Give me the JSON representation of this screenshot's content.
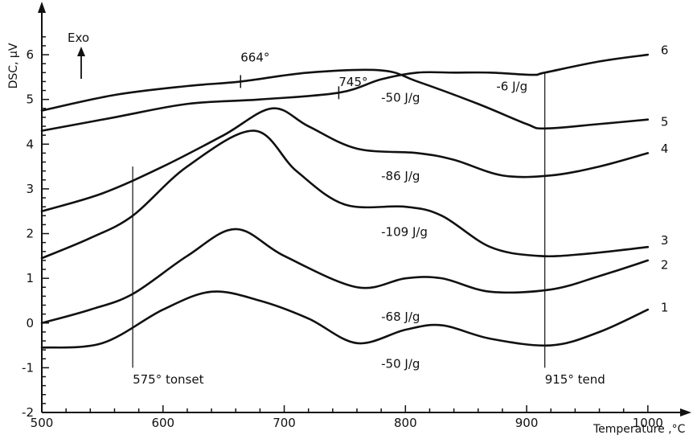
{
  "chart_data": {
    "type": "line",
    "xlabel": "Temperature ,°C",
    "ylabel": "DSC, μV",
    "xlim": [
      500,
      1020
    ],
    "ylim": [
      -2,
      6.9
    ],
    "xticks": [
      500,
      600,
      700,
      800,
      900,
      1000
    ],
    "yticks": [
      -2,
      -1,
      0,
      1,
      2,
      3,
      4,
      5,
      6
    ],
    "grid": false,
    "exo_label": "Exo",
    "series": [
      {
        "name": "1",
        "x": [
          500,
          550,
          600,
          640,
          680,
          720,
          760,
          800,
          830,
          870,
          920,
          960,
          1000
        ],
        "y": [
          -0.55,
          -0.45,
          0.3,
          0.7,
          0.5,
          0.1,
          -0.45,
          -0.15,
          -0.05,
          -0.35,
          -0.5,
          -0.2,
          0.3
        ]
      },
      {
        "name": "2",
        "x": [
          500,
          540,
          575,
          620,
          660,
          700,
          760,
          800,
          830,
          870,
          920,
          960,
          1000
        ],
        "y": [
          0,
          0.3,
          0.65,
          1.5,
          2.1,
          1.5,
          0.8,
          1.0,
          1.0,
          0.7,
          0.75,
          1.05,
          1.4
        ]
      },
      {
        "name": "3",
        "x": [
          500,
          540,
          575,
          620,
          675,
          710,
          750,
          800,
          830,
          870,
          910,
          950,
          1000
        ],
        "y": [
          1.45,
          1.9,
          2.4,
          3.5,
          4.3,
          3.4,
          2.65,
          2.6,
          2.4,
          1.7,
          1.5,
          1.55,
          1.7
        ]
      },
      {
        "name": "4",
        "x": [
          500,
          550,
          600,
          650,
          690,
          720,
          760,
          810,
          840,
          880,
          920,
          960,
          1000
        ],
        "y": [
          2.5,
          2.9,
          3.5,
          4.2,
          4.8,
          4.4,
          3.9,
          3.8,
          3.65,
          3.3,
          3.3,
          3.5,
          3.8
        ]
      },
      {
        "name": "5",
        "x": [
          500,
          560,
          620,
          680,
          745,
          780,
          810,
          840,
          870,
          905,
          915,
          960,
          1000
        ],
        "y": [
          4.3,
          4.6,
          4.9,
          5.0,
          5.15,
          5.45,
          5.6,
          5.6,
          5.6,
          5.55,
          5.6,
          5.85,
          6.0
        ]
      },
      {
        "name": "6",
        "x": [
          500,
          560,
          620,
          664,
          720,
          780,
          810,
          860,
          900,
          915,
          960,
          1000
        ],
        "y": [
          4.75,
          5.1,
          5.3,
          5.4,
          5.6,
          5.65,
          5.4,
          4.9,
          4.45,
          4.35,
          4.45,
          4.55
        ]
      }
    ],
    "curve_labels": [
      {
        "text": "6",
        "x": 1000,
        "y": 6.1
      },
      {
        "text": "5",
        "x": 1000,
        "y": 4.5
      },
      {
        "text": "4",
        "x": 1000,
        "y": 3.9
      },
      {
        "text": "3",
        "x": 1000,
        "y": 1.85
      },
      {
        "text": "2",
        "x": 1000,
        "y": 1.3
      },
      {
        "text": "1",
        "x": 1000,
        "y": 0.35
      }
    ],
    "annotations": [
      {
        "text": "664°",
        "x": 664,
        "y": 5.85
      },
      {
        "text": "745°",
        "x": 745,
        "y": 5.3
      },
      {
        "text": "-6  J/g",
        "x": 875,
        "y": 5.2
      },
      {
        "text": "-50 J/g",
        "x": 780,
        "y": 4.95
      },
      {
        "text": "-86  J/g",
        "x": 780,
        "y": 3.2
      },
      {
        "text": "-109  J/g",
        "x": 780,
        "y": 1.95
      },
      {
        "text": "-68  J/g",
        "x": 780,
        "y": 0.05
      },
      {
        "text": "-50 J/g",
        "x": 780,
        "y": -1.0
      },
      {
        "text": "575° tonset",
        "x": 575,
        "y": -1.35
      },
      {
        "text": "915° tend",
        "x": 915,
        "y": -1.35
      }
    ],
    "vertical_markers": [
      {
        "x": 575,
        "y_from": -1.0,
        "y_to": 3.5
      },
      {
        "x": 915,
        "y_from": -1.0,
        "y_to": 5.6
      }
    ],
    "peak_ticks": [
      {
        "x": 664,
        "y": 5.4
      },
      {
        "x": 745,
        "y": 5.15
      }
    ]
  }
}
